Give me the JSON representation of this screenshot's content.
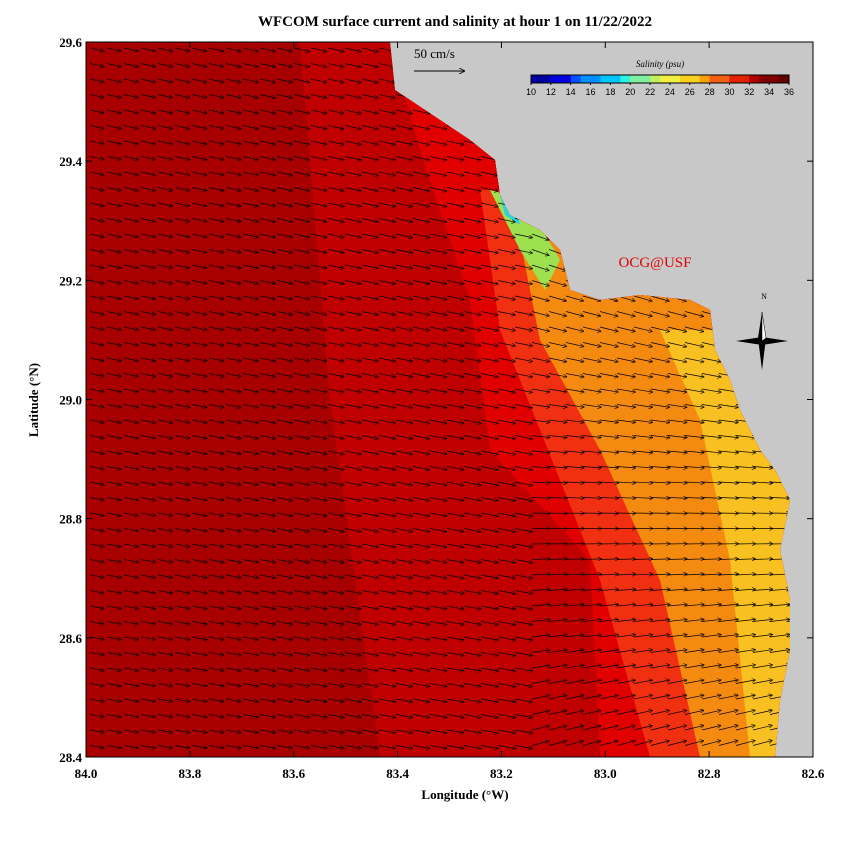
{
  "title": "WFCOM surface current and salinity at hour 1 on 11/22/2022",
  "x_axis": {
    "label": "Longitude (°W)",
    "lim": [
      84.0,
      82.6
    ],
    "ticks": [
      {
        "value": 84.0,
        "label": "84.0"
      },
      {
        "value": 83.8,
        "label": "83.8"
      },
      {
        "value": 83.6,
        "label": "83.6"
      },
      {
        "value": 83.4,
        "label": "83.4"
      },
      {
        "value": 83.2,
        "label": "83.2"
      },
      {
        "value": 83.0,
        "label": "83.0"
      },
      {
        "value": 82.8,
        "label": "82.8"
      },
      {
        "value": 82.6,
        "label": "82.6"
      }
    ]
  },
  "y_axis": {
    "label": "Latitude (°N)",
    "lim": [
      28.4,
      29.6
    ],
    "ticks": [
      {
        "value": 28.4,
        "label": "28.4"
      },
      {
        "value": 28.6,
        "label": "28.6"
      },
      {
        "value": 28.8,
        "label": "28.8"
      },
      {
        "value": 29.0,
        "label": "29.0"
      },
      {
        "value": 29.2,
        "label": "29.2"
      },
      {
        "value": 29.4,
        "label": "29.4"
      },
      {
        "value": 29.6,
        "label": "29.6"
      }
    ]
  },
  "scale_arrow": "50 cm/s",
  "colorbar": {
    "title": "Salinity (psu)",
    "ticks": [
      10,
      12,
      14,
      16,
      18,
      20,
      22,
      24,
      26,
      28,
      30,
      32,
      34,
      36
    ]
  },
  "credit": "OCG@USF",
  "compass": "N"
}
